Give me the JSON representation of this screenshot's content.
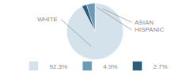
{
  "chart_data": {
    "type": "pie",
    "categories": [
      "WHITE",
      "ASIAN",
      "HISPANIC"
    ],
    "values": [
      92.3,
      4.9,
      2.7
    ],
    "value_labels": [
      "92.3%",
      "4.9%",
      "2.7%"
    ],
    "colors": [
      "#d4e2ec",
      "#6a9ab5",
      "#2b5c78"
    ],
    "legend": "bottom"
  }
}
